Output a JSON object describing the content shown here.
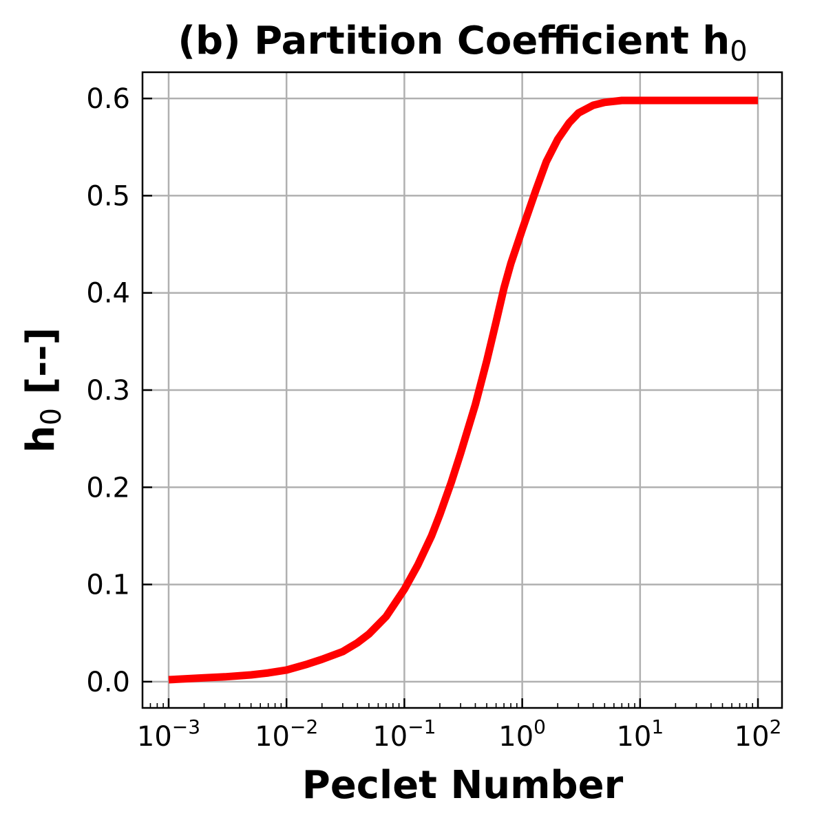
{
  "chart_data": {
    "type": "line",
    "title": "(b) Partition Coefficient h",
    "title_subscript": "0",
    "xlabel": "Peclet Number",
    "ylabel": "h",
    "ylabel_subscript": "0",
    "ylabel_suffix": " [--]",
    "x_scale": "log",
    "xlim": [
      0.0006,
      160
    ],
    "ylim": [
      -0.027,
      0.627
    ],
    "x_ticks": [
      {
        "value": 0.001,
        "base": "10",
        "exp": "−3"
      },
      {
        "value": 0.01,
        "base": "10",
        "exp": "−2"
      },
      {
        "value": 0.1,
        "base": "10",
        "exp": "−1"
      },
      {
        "value": 1,
        "base": "10",
        "exp": "0"
      },
      {
        "value": 10,
        "base": "10",
        "exp": "1"
      },
      {
        "value": 100,
        "base": "10",
        "exp": "2"
      }
    ],
    "y_ticks": [
      {
        "value": 0.0,
        "label": "0.0"
      },
      {
        "value": 0.1,
        "label": "0.1"
      },
      {
        "value": 0.2,
        "label": "0.2"
      },
      {
        "value": 0.3,
        "label": "0.3"
      },
      {
        "value": 0.4,
        "label": "0.4"
      },
      {
        "value": 0.5,
        "label": "0.5"
      },
      {
        "value": 0.6,
        "label": "0.6"
      }
    ],
    "grid": true,
    "series": [
      {
        "color": "#ff0000",
        "x": [
          0.001,
          0.002,
          0.003,
          0.005,
          0.007,
          0.01,
          0.015,
          0.02,
          0.03,
          0.04,
          0.05,
          0.07,
          0.1,
          0.13,
          0.17,
          0.2,
          0.25,
          0.3,
          0.4,
          0.5,
          0.6,
          0.7,
          0.8,
          1.0,
          1.3,
          1.6,
          2.0,
          2.5,
          3.0,
          4.0,
          5.0,
          7.0,
          10,
          20,
          50,
          100
        ],
        "y": [
          0.002,
          0.004,
          0.005,
          0.007,
          0.009,
          0.012,
          0.018,
          0.023,
          0.031,
          0.04,
          0.049,
          0.067,
          0.095,
          0.12,
          0.15,
          0.172,
          0.205,
          0.235,
          0.285,
          0.33,
          0.37,
          0.405,
          0.43,
          0.465,
          0.505,
          0.535,
          0.558,
          0.575,
          0.585,
          0.593,
          0.596,
          0.598,
          0.598,
          0.598,
          0.598,
          0.598
        ]
      }
    ]
  }
}
